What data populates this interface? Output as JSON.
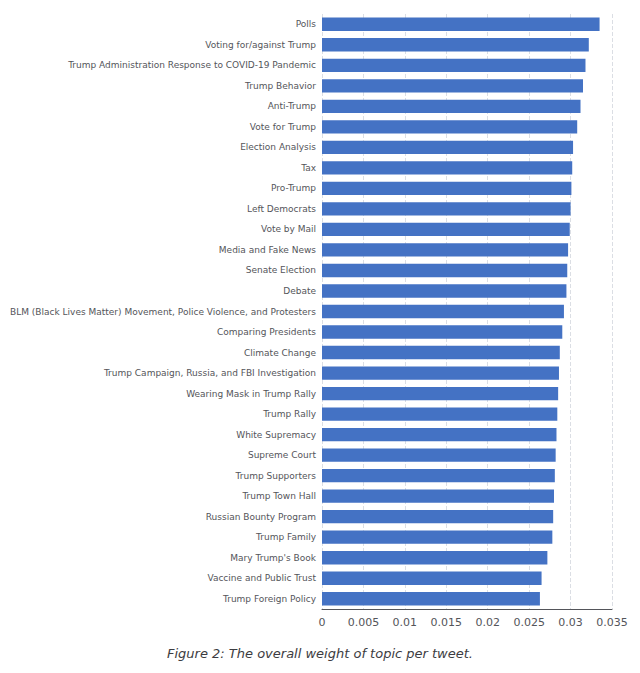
{
  "chart_data": {
    "type": "bar",
    "orientation": "horizontal",
    "title": "Figure 2: The overall weight of topic per tweet.",
    "categories": [
      "Trump Foreign Policy",
      "Vaccine and Public Trust",
      "Mary Trump's Book",
      "Trump Family",
      "Russian Bounty Program",
      "Trump Town Hall",
      "Trump Supporters",
      "Supreme Court",
      "White Supremacy",
      "Trump Rally",
      "Wearing Mask in Trump Rally",
      "Trump Campaign, Russia, and FBI Investigation",
      "Climate Change",
      "Comparing Presidents",
      "BLM (Black Lives Matter) Movement, Police Violence, and Protesters",
      "Debate",
      "Senate Election",
      "Media and Fake News",
      "Vote by Mail",
      "Left Democrats",
      "Pro-Trump",
      "Tax",
      "Election Analysis",
      "Vote for Trump",
      "Anti-Trump",
      "Trump Behavior",
      "Trump Administration Response to COVID-19 Pandemic",
      "Voting for/against Trump",
      "Polls"
    ],
    "values": [
      0.0263,
      0.0265,
      0.0272,
      0.0278,
      0.0279,
      0.028,
      0.0281,
      0.0282,
      0.0283,
      0.0284,
      0.0285,
      0.0286,
      0.0287,
      0.029,
      0.0292,
      0.0295,
      0.0296,
      0.0297,
      0.0299,
      0.03,
      0.0301,
      0.0302,
      0.0303,
      0.0308,
      0.0312,
      0.0315,
      0.0318,
      0.0322,
      0.0335
    ],
    "color": "#4472C4",
    "xlim": [
      0,
      0.035
    ],
    "xticks": [
      0,
      0.005,
      0.01,
      0.015,
      0.02,
      0.025,
      0.03,
      0.035
    ],
    "grid": true
  }
}
